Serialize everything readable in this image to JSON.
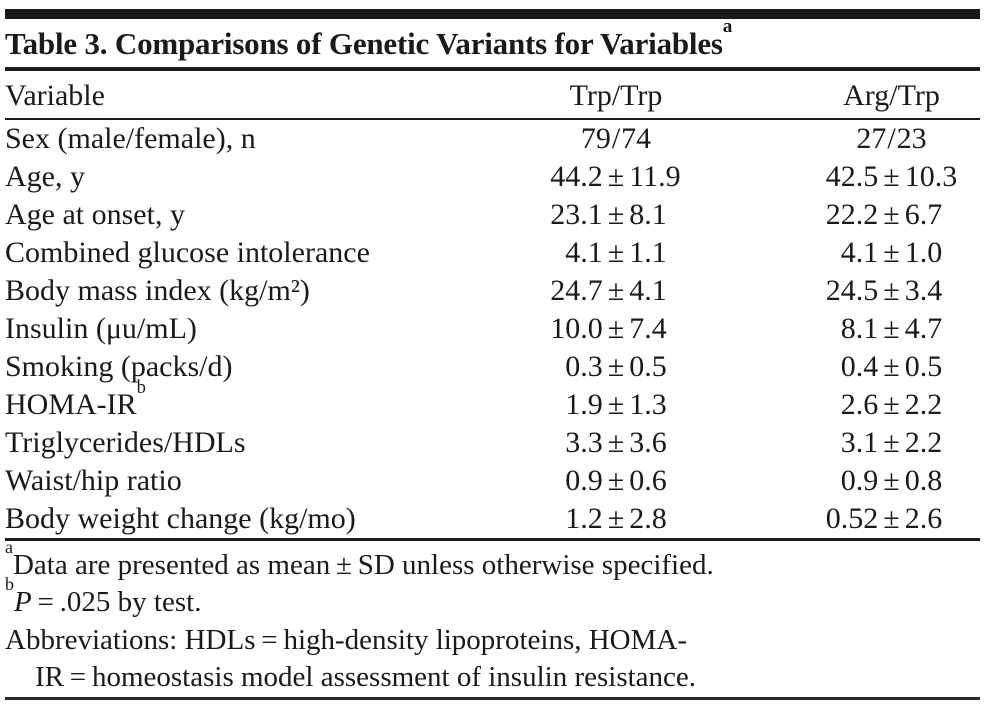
{
  "colors": {
    "ink": "#1a1a1a",
    "background": "#ffffff"
  },
  "table": {
    "title": "Table 3. Comparisons of Genetic Variants for Variables",
    "title_sup": "a",
    "columns": [
      "Variable",
      "Trp/Trp",
      "Arg/Trp"
    ],
    "rows": [
      {
        "label": "Sex (male/female), n",
        "sup": "",
        "trp_trp": "79/74",
        "arg_trp": "27/23"
      },
      {
        "label": "Age, y",
        "sup": "",
        "trp_trp": "44.2 ± 11.9",
        "arg_trp": "42.5 ± 10.3"
      },
      {
        "label": "Age at onset, y",
        "sup": "",
        "trp_trp": "23.1 ± 8.1",
        "arg_trp": "22.2 ± 6.7"
      },
      {
        "label": "Combined glucose intolerance",
        "sup": "",
        "trp_trp": "4.1 ± 1.1",
        "arg_trp": "4.1 ± 1.0"
      },
      {
        "label": "Body mass index (kg/m²)",
        "sup": "",
        "trp_trp": "24.7 ± 4.1",
        "arg_trp": "24.5 ± 3.4"
      },
      {
        "label": "Insulin (μu/mL)",
        "sup": "",
        "trp_trp": "10.0 ± 7.4",
        "arg_trp": "8.1 ± 4.7"
      },
      {
        "label": "Smoking (packs/d)",
        "sup": "",
        "trp_trp": "0.3 ± 0.5",
        "arg_trp": "0.4 ± 0.5"
      },
      {
        "label": "HOMA-IR",
        "sup": "b",
        "trp_trp": "1.9 ± 1.3",
        "arg_trp": "2.6 ± 2.2"
      },
      {
        "label": "Triglycerides/HDLs",
        "sup": "",
        "trp_trp": "3.3 ± 3.6",
        "arg_trp": "3.1 ± 2.2"
      },
      {
        "label": "Waist/hip ratio",
        "sup": "",
        "trp_trp": "0.9 ± 0.6",
        "arg_trp": "0.9 ± 0.8"
      },
      {
        "label": "Body weight change (kg/mo)",
        "sup": "",
        "trp_trp": "1.2 ± 2.8",
        "arg_trp": "0.52 ± 2.6"
      }
    ],
    "footnotes": [
      {
        "sup": "a",
        "italic": "",
        "text": "Data are presented as mean ± SD unless otherwise specified.",
        "indent": false
      },
      {
        "sup": "b",
        "italic": "P",
        "text": " = .025 by test.",
        "indent": false
      },
      {
        "sup": "",
        "italic": "",
        "text": "Abbreviations: HDLs = high-density lipoproteins, HOMA-",
        "indent": false
      },
      {
        "sup": "",
        "italic": "",
        "text": "IR = homeostasis model assessment of insulin resistance.",
        "indent": true
      }
    ]
  }
}
